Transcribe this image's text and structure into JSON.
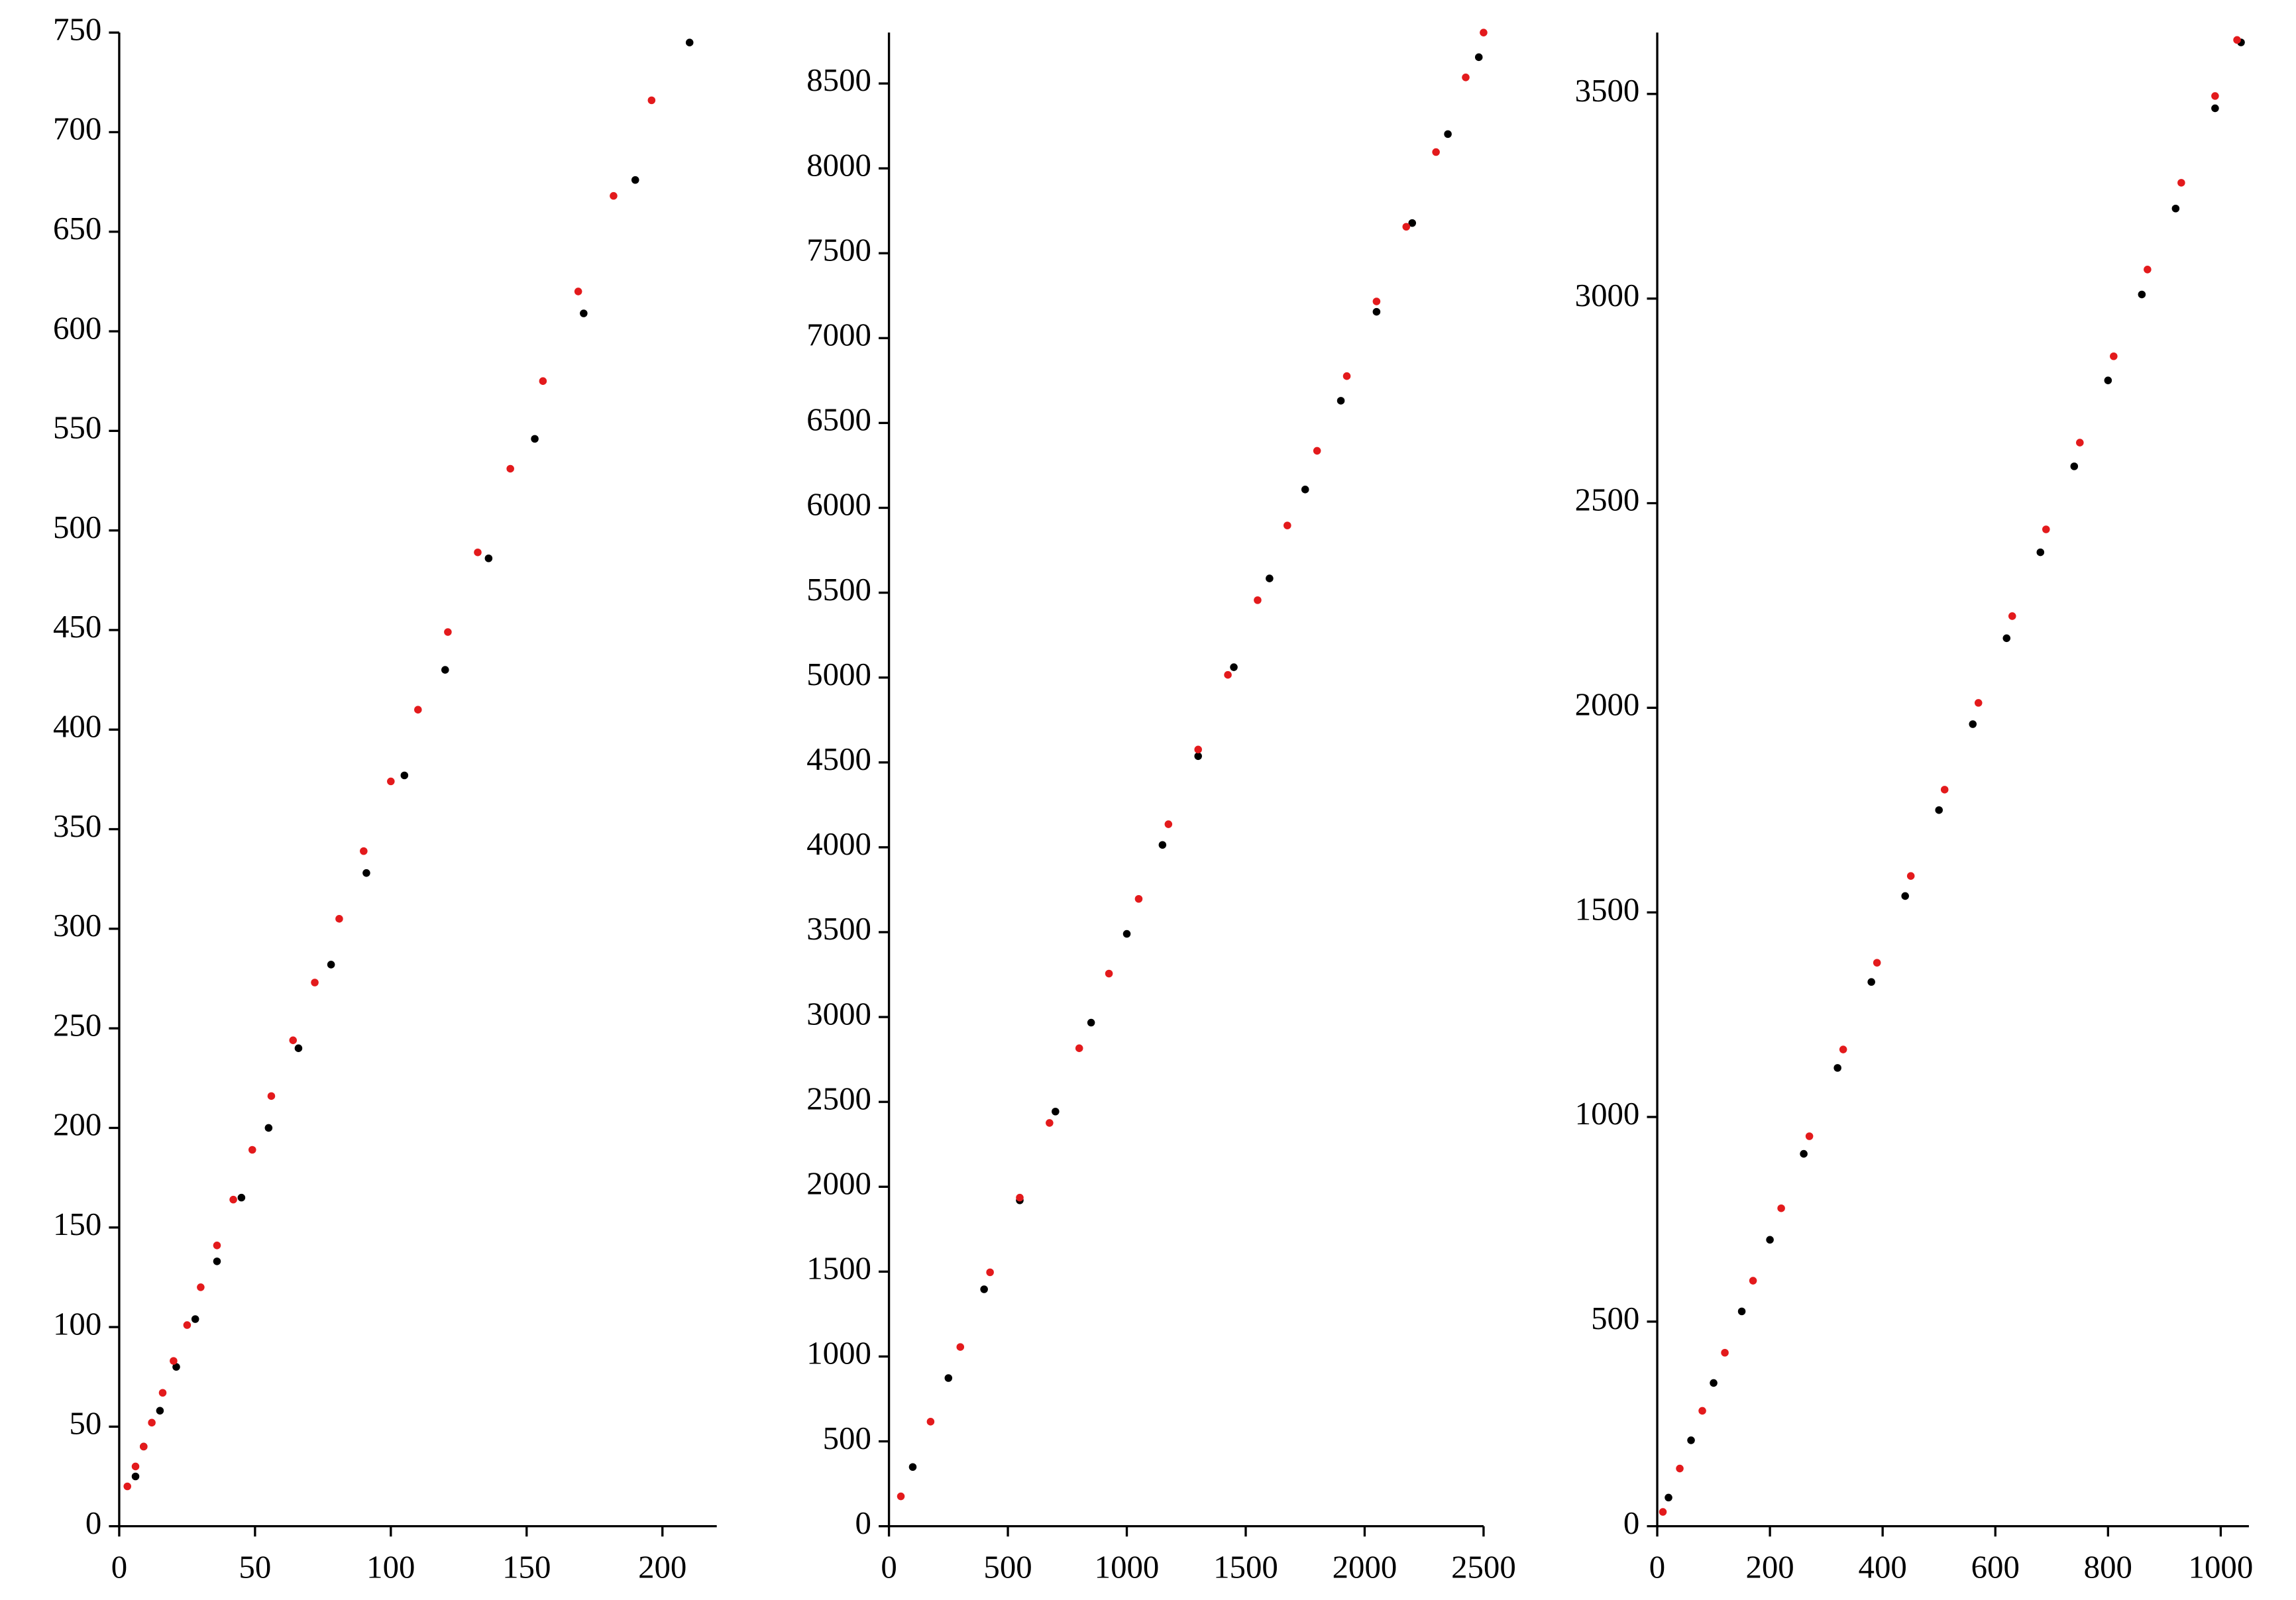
{
  "chart_data": [
    {
      "type": "scatter",
      "xlim": [
        0,
        220
      ],
      "ylim": [
        0,
        750
      ],
      "xticks": [
        0,
        50,
        100,
        150,
        200
      ],
      "yticks": [
        0,
        50,
        100,
        150,
        200,
        250,
        300,
        350,
        400,
        450,
        500,
        550,
        600,
        650,
        700,
        750
      ],
      "series": [
        {
          "color": "#000000",
          "x": [
            6,
            9,
            15,
            21,
            28,
            36,
            45,
            55,
            66,
            78,
            91,
            105,
            120,
            136,
            153,
            171,
            190,
            210
          ],
          "values": [
            25,
            40,
            58,
            80,
            104,
            133,
            165,
            200,
            240,
            282,
            328,
            377,
            430,
            486,
            546,
            609,
            676,
            745
          ]
        },
        {
          "color": "#e31a1c",
          "x": [
            3,
            6,
            9,
            12,
            16,
            20,
            25,
            30,
            36,
            42,
            49,
            56,
            64,
            72,
            81,
            90,
            100,
            110,
            121,
            132,
            144,
            156,
            169,
            182,
            196
          ],
          "values": [
            20,
            30,
            40,
            52,
            67,
            83,
            101,
            120,
            141,
            164,
            189,
            216,
            244,
            273,
            305,
            339,
            374,
            410,
            449,
            489,
            531,
            575,
            620,
            668,
            716
          ]
        }
      ]
    },
    {
      "type": "scatter",
      "xlim": [
        0,
        2500
      ],
      "ylim": [
        0,
        8800
      ],
      "xticks": [
        0,
        500,
        1000,
        1500,
        2000,
        2500
      ],
      "yticks": [
        0,
        500,
        1000,
        1500,
        2000,
        2500,
        3000,
        3500,
        4000,
        4500,
        5000,
        5500,
        6000,
        6500,
        7000,
        7500,
        8000,
        8500
      ],
      "series": [
        {
          "color": "#000000",
          "x": [
            100,
            250,
            400,
            550,
            700,
            850,
            1000,
            1150,
            1300,
            1450,
            1600,
            1750,
            1900,
            2050,
            2200,
            2350,
            2480
          ],
          "values": [
            349,
            873,
            1396,
            1920,
            2443,
            2967,
            3490,
            4014,
            4537,
            5061,
            5584,
            6108,
            6631,
            7155,
            7678,
            8202,
            8655
          ]
        },
        {
          "color": "#e31a1c",
          "x": [
            50,
            175,
            300,
            425,
            550,
            675,
            800,
            925,
            1050,
            1175,
            1300,
            1425,
            1550,
            1675,
            1800,
            1925,
            2050,
            2175,
            2300,
            2425,
            2500
          ],
          "values": [
            176,
            616,
            1056,
            1496,
            1936,
            2376,
            2816,
            3256,
            3696,
            4136,
            4576,
            5016,
            5456,
            5896,
            6336,
            6776,
            7216,
            7656,
            8096,
            8536,
            8800
          ]
        }
      ]
    },
    {
      "type": "scatter",
      "xlim": [
        0,
        1050
      ],
      "ylim": [
        0,
        3650
      ],
      "xticks": [
        0,
        200,
        400,
        600,
        800,
        1000
      ],
      "yticks": [
        0,
        500,
        1000,
        1500,
        2000,
        2500,
        3000,
        3500
      ],
      "series": [
        {
          "color": "#000000",
          "x": [
            20,
            60,
            100,
            150,
            200,
            260,
            320,
            380,
            440,
            500,
            560,
            620,
            680,
            740,
            800,
            860,
            920,
            990,
            1036
          ],
          "values": [
            70,
            210,
            350,
            525,
            700,
            910,
            1120,
            1330,
            1540,
            1750,
            1960,
            2170,
            2380,
            2590,
            2800,
            3010,
            3220,
            3465,
            3626
          ]
        },
        {
          "color": "#e31a1c",
          "x": [
            10,
            40,
            80,
            120,
            170,
            220,
            270,
            330,
            390,
            450,
            510,
            570,
            630,
            690,
            750,
            810,
            870,
            930,
            990,
            1029
          ],
          "values": [
            35,
            141,
            282,
            424,
            600,
            777,
            953,
            1165,
            1377,
            1589,
            1800,
            2012,
            2224,
            2436,
            2648,
            2859,
            3071,
            3283,
            3495,
            3632
          ]
        }
      ]
    }
  ]
}
